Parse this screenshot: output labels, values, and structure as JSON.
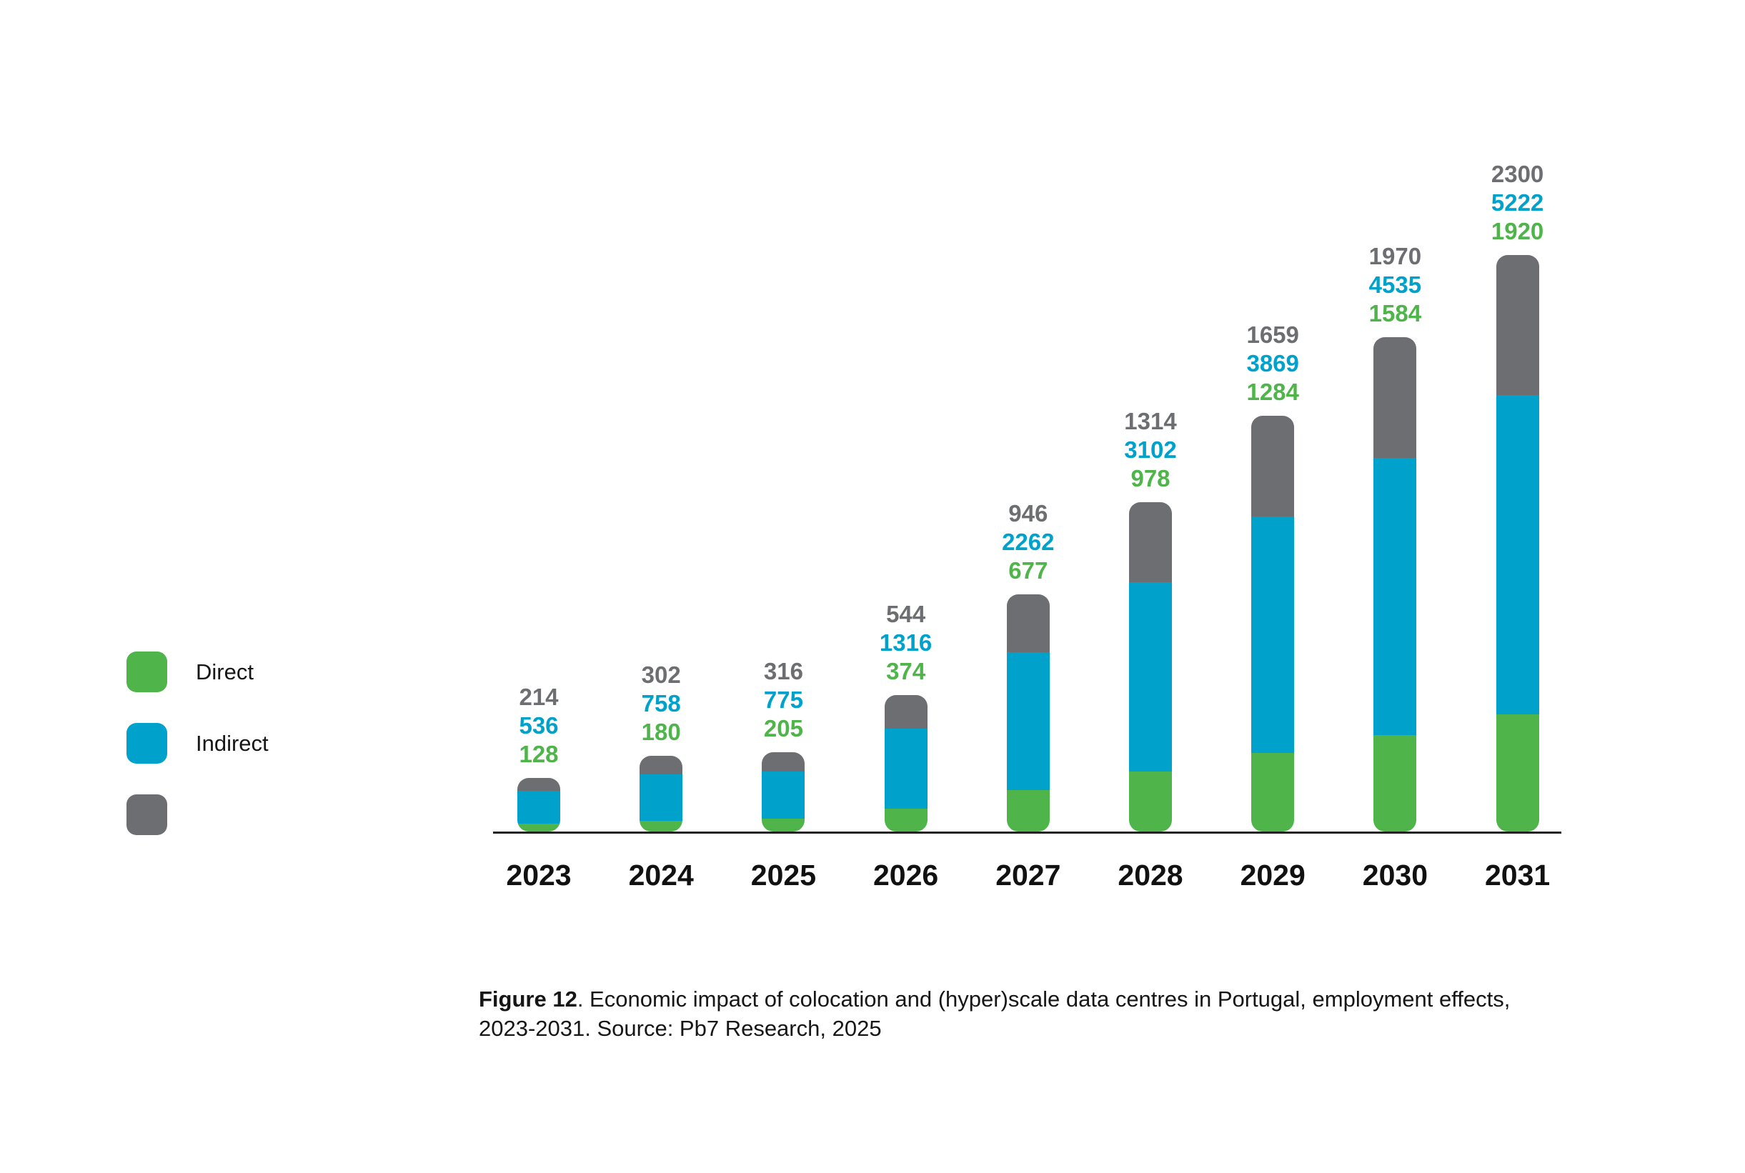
{
  "figure": {
    "caption_label": "Figure 12",
    "caption_text": ". Economic impact of colocation and (hyper)scale data centres in Portugal, employment effects, 2023-2031. Source: Pb7 Research, 2025"
  },
  "legend": {
    "items": [
      {
        "label": "Direct",
        "color": "#4fb54a"
      },
      {
        "label": "Indirect",
        "color": "#00a1cb"
      },
      {
        "label": "",
        "color": "#6d6e71"
      }
    ]
  },
  "chart_data": {
    "type": "bar",
    "stacked": true,
    "title": "",
    "xlabel": "",
    "ylabel": "",
    "grid": false,
    "legend_position": "left",
    "data_labels": true,
    "categories": [
      "2023",
      "2024",
      "2025",
      "2026",
      "2027",
      "2028",
      "2029",
      "2030",
      "2031"
    ],
    "series": [
      {
        "name": "Direct",
        "color": "#4fb54a",
        "values": [
          128,
          180,
          205,
          374,
          677,
          978,
          1284,
          1584,
          1920
        ]
      },
      {
        "name": "Indirect",
        "color": "#00a1cb",
        "values": [
          536,
          758,
          775,
          1316,
          2262,
          3102,
          3869,
          4535,
          5222
        ]
      },
      {
        "name": "",
        "color": "#6d6e71",
        "values": [
          214,
          302,
          316,
          544,
          946,
          1314,
          1659,
          1970,
          2300
        ]
      }
    ]
  }
}
